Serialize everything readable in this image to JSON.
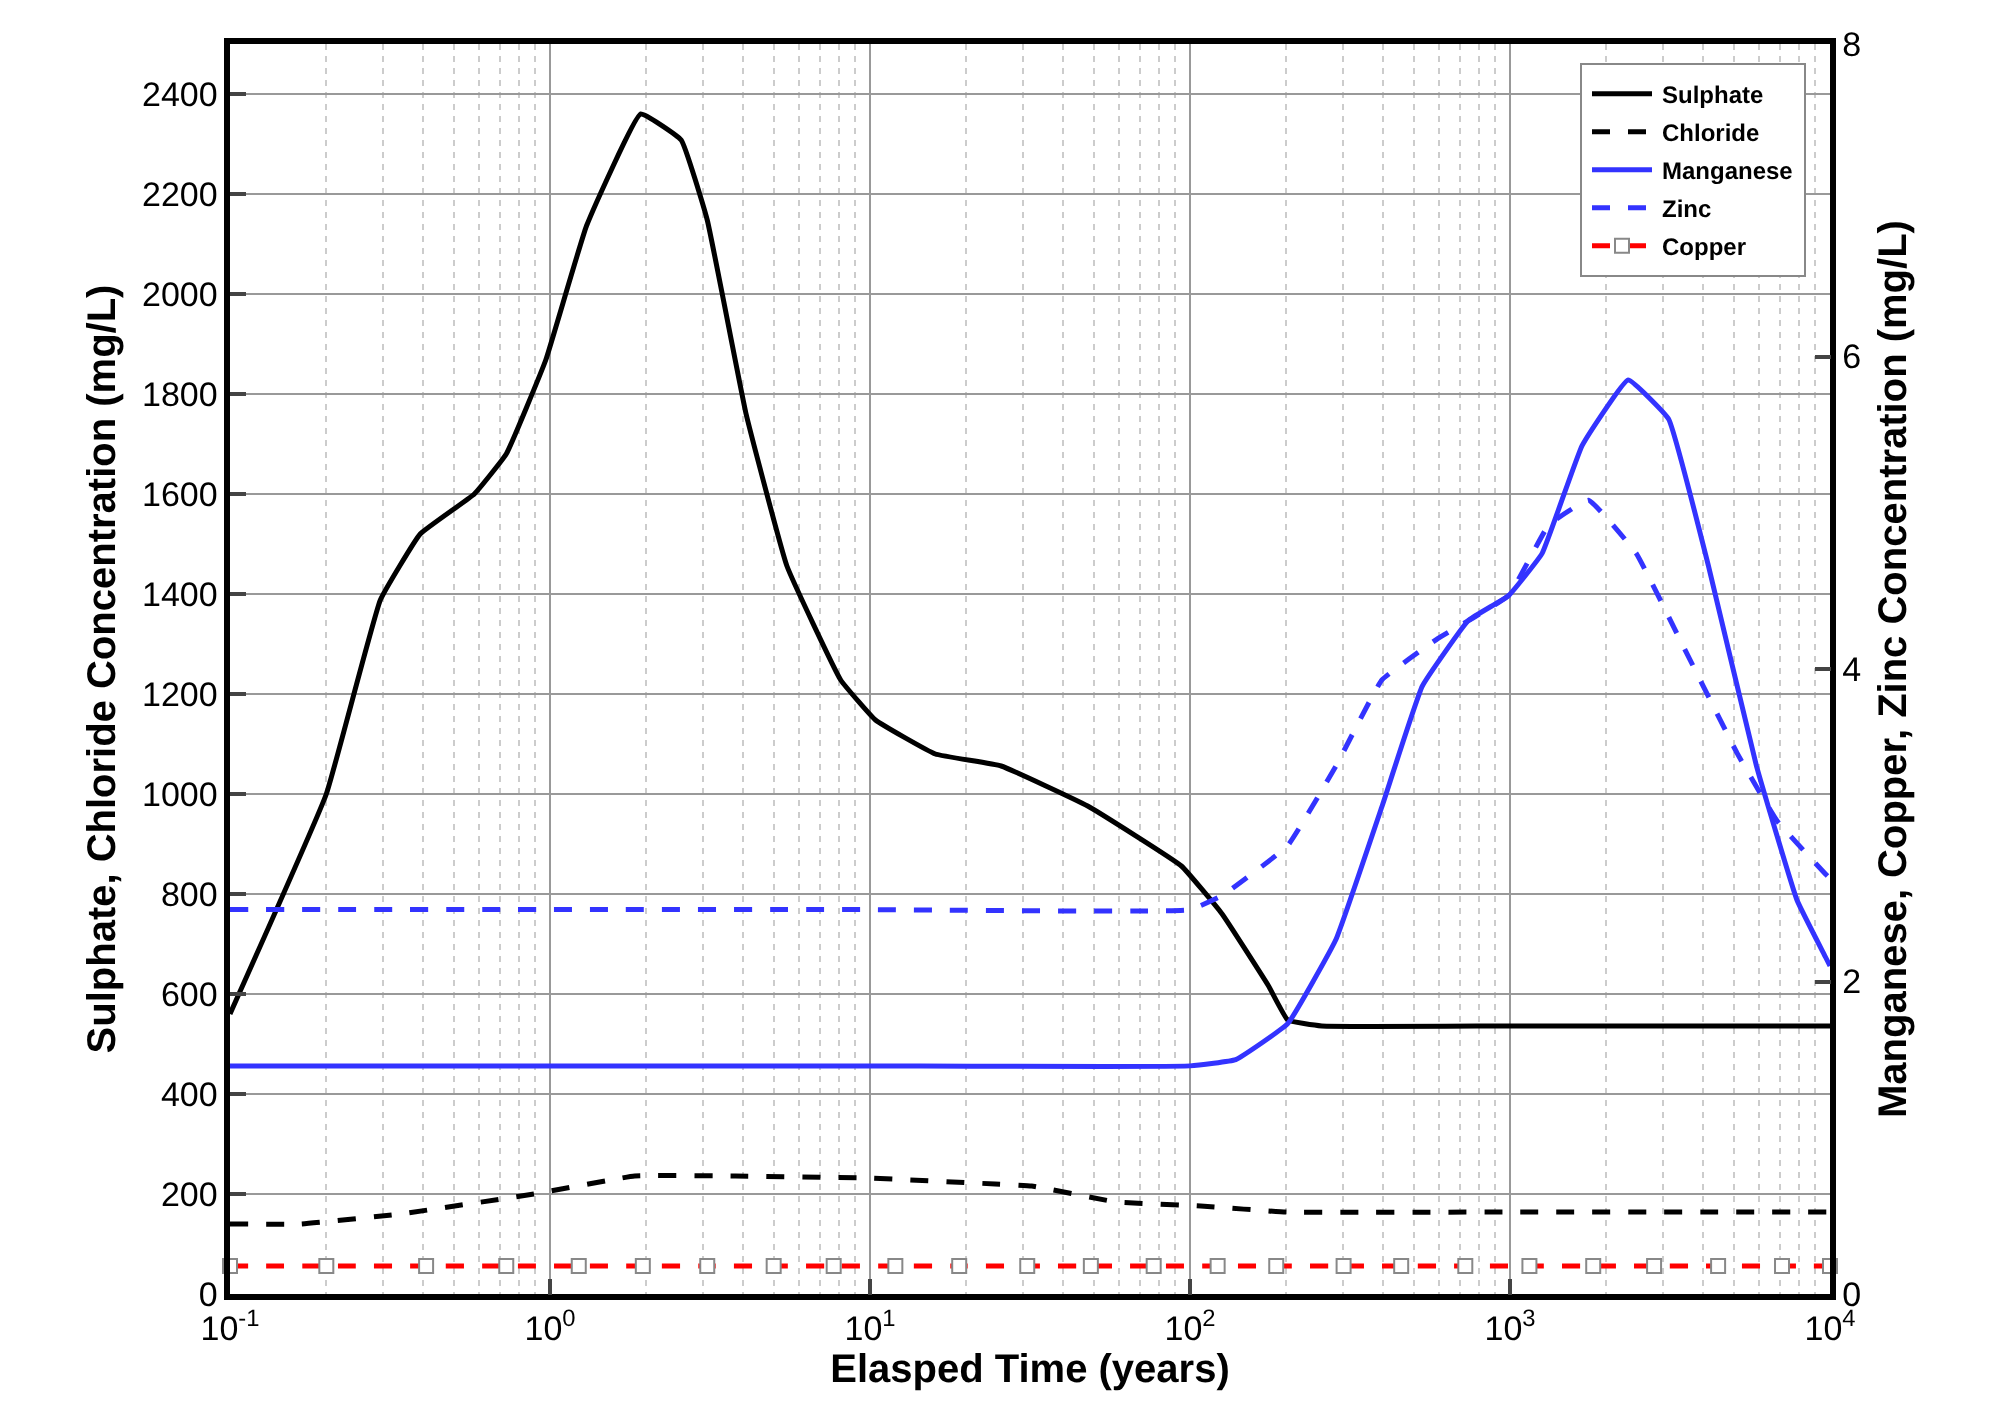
{
  "chart_data": {
    "type": "line",
    "xlabel": "Elasped Time (years)",
    "ylabel": "Sulphate, Chloride Concentration (mg/L)",
    "y2label": "Manganese, Copper, Zinc Concentration (mg/L)",
    "log": "x",
    "xlim": [
      0.1,
      10000
    ],
    "xticks": [
      {
        "value": 0.1,
        "label": "10$^{-1}$"
      },
      {
        "value": 1,
        "label": "10$^{0}$"
      },
      {
        "value": 10,
        "label": "10$^{1}$"
      },
      {
        "value": 100,
        "label": "10$^{2}$"
      },
      {
        "value": 1000,
        "label": "10$^{3}$"
      },
      {
        "value": 10000,
        "label": "10$^{4}$"
      }
    ],
    "ylim": [
      0,
      2500
    ],
    "yticks": [
      0,
      200,
      400,
      600,
      800,
      1000,
      1200,
      1400,
      1600,
      1800,
      2000,
      2200,
      2400
    ],
    "y2lim": [
      0,
      8
    ],
    "y2ticks": [
      0,
      2,
      4,
      6,
      8
    ],
    "grid": true,
    "legend": "top right",
    "series": [
      {
        "name": "Sulphate",
        "color": "#000000",
        "line_style": "solid",
        "marker": "none",
        "x": [
          0.1,
          0.2,
          0.295,
          0.393,
          0.58,
          0.73,
          0.97,
          1.3,
          1.92,
          2.57,
          3.1,
          4.1,
          5.5,
          8.1,
          10.4,
          16,
          25.7,
          47.9,
          94,
          126,
          176,
          202,
          258,
          1000,
          10000
        ],
        "values": [
          560,
          1000,
          1388,
          1520,
          1600,
          1680,
          1868,
          2136,
          2360,
          2308,
          2148,
          1760,
          1456,
          1228,
          1148,
          1080,
          1056,
          976,
          856,
          760,
          616,
          548,
          536,
          536,
          536
        ]
      },
      {
        "name": "Chloride",
        "color": "#000000",
        "line_style": "dashed",
        "marker": "none",
        "x": [
          0.1,
          0.166,
          0.34,
          0.89,
          1.84,
          3.8,
          9.8,
          24.6,
          32,
          59,
          108,
          200,
          1000,
          10000
        ],
        "values": [
          140,
          140,
          160,
          200,
          236,
          236,
          232,
          220,
          216,
          184,
          176,
          164,
          164,
          164
        ]
      },
      {
        "name": "Manganese",
        "color": "#3333ff",
        "line_style": "solid",
        "marker": "none",
        "axis": "y2",
        "x": [
          0.1,
          1,
          10,
          100,
          139,
          202,
          286,
          398,
          532,
          741,
          990,
          1260,
          1680,
          2340,
          3130,
          4170,
          5890,
          7890,
          9660,
          10000
        ],
        "values": [
          1.46,
          1.46,
          1.46,
          1.46,
          1.5,
          1.73,
          2.27,
          3.12,
          3.89,
          4.31,
          4.47,
          4.74,
          5.43,
          5.85,
          5.6,
          4.66,
          3.38,
          2.52,
          2.16,
          2.1
        ]
      },
      {
        "name": "Zinc",
        "color": "#3333ff",
        "line_style": "dashed",
        "marker": "none",
        "axis": "y2",
        "x": [
          0.1,
          1,
          10,
          100,
          126,
          202,
          286,
          398,
          590,
          990,
          1320,
          1760,
          2480,
          3470,
          5130,
          6820,
          9660,
          10000
        ],
        "values": [
          2.46,
          2.46,
          2.46,
          2.46,
          2.55,
          2.87,
          3.38,
          3.93,
          4.19,
          4.47,
          4.92,
          5.08,
          4.74,
          4.15,
          3.46,
          3.03,
          2.69,
          2.66
        ]
      },
      {
        "name": "Copper",
        "color": "#ff0000",
        "line_style": "dashed",
        "marker": "square",
        "axis": "y2",
        "x": [
          0.1,
          0.2,
          0.41,
          0.73,
          1.23,
          1.95,
          3.1,
          5.0,
          7.7,
          12,
          19,
          31,
          49,
          77,
          122,
          186,
          302,
          457,
          725,
          1150,
          1820,
          2820,
          4470,
          7080,
          10000
        ],
        "values": [
          0.18,
          0.18,
          0.18,
          0.18,
          0.18,
          0.18,
          0.18,
          0.18,
          0.18,
          0.18,
          0.18,
          0.18,
          0.18,
          0.18,
          0.18,
          0.18,
          0.18,
          0.18,
          0.18,
          0.18,
          0.18,
          0.18,
          0.18,
          0.18,
          0.18
        ]
      }
    ]
  }
}
